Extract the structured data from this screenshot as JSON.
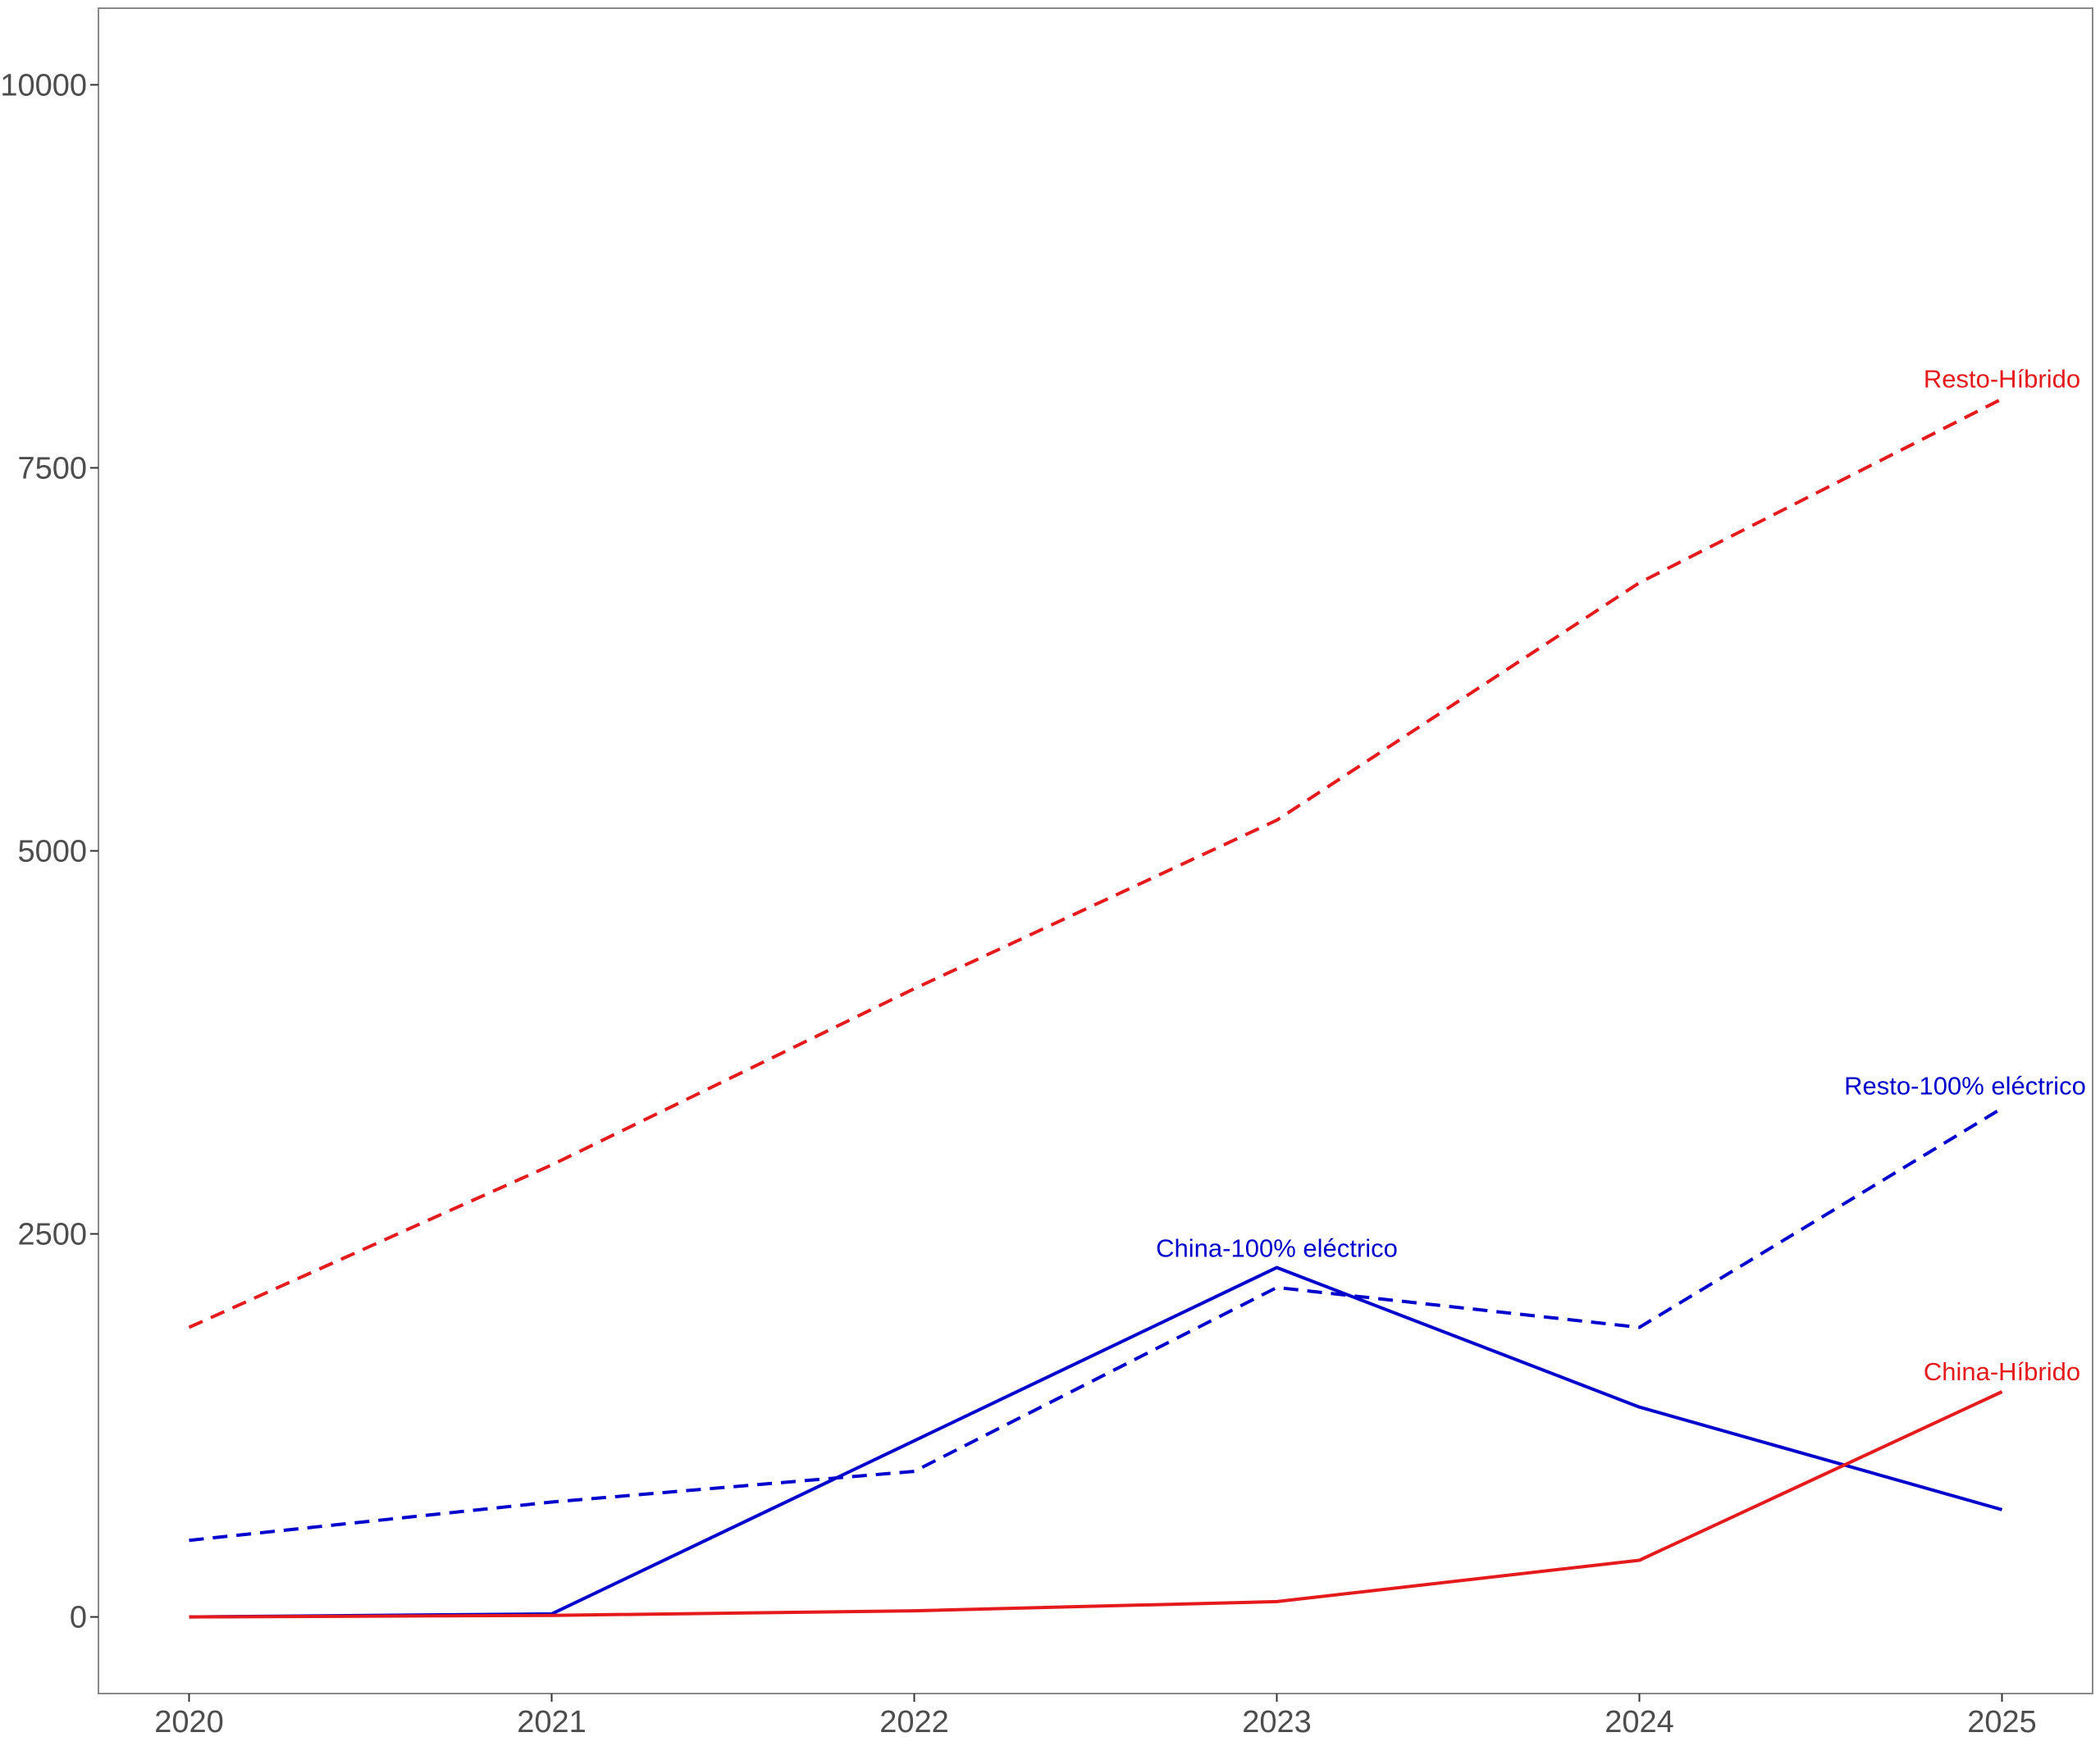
{
  "chart_data": {
    "type": "line",
    "title": "",
    "xlabel": "",
    "ylabel": "",
    "x": [
      2020,
      2021,
      2022,
      2023,
      2024,
      2025
    ],
    "xlim": [
      2019.75,
      2025.25
    ],
    "ylim": [
      -500,
      10500
    ],
    "yticks": [
      0,
      2500,
      5000,
      7500,
      10000
    ],
    "xticks": [
      2020,
      2021,
      2022,
      2023,
      2024,
      2025
    ],
    "grid": false,
    "legend": "none",
    "series": [
      {
        "name": "Resto-Híbrido",
        "color": "#e41a1c",
        "dash": "dashed",
        "values": [
          1890,
          2950,
          4100,
          5200,
          6750,
          7950
        ]
      },
      {
        "name": "Resto-100% eléctrico",
        "color": "#0000cc",
        "dash": "dashed",
        "values": [
          500,
          750,
          950,
          2150,
          1890,
          3320
        ]
      },
      {
        "name": "China-100% eléctrico",
        "color": "#0000cc",
        "dash": "solid",
        "values": [
          0,
          20,
          1150,
          2280,
          1370,
          700
        ]
      },
      {
        "name": "China-Híbrido",
        "color": "#e41a1c",
        "dash": "solid",
        "values": [
          0,
          10,
          40,
          100,
          370,
          1470
        ]
      }
    ]
  }
}
